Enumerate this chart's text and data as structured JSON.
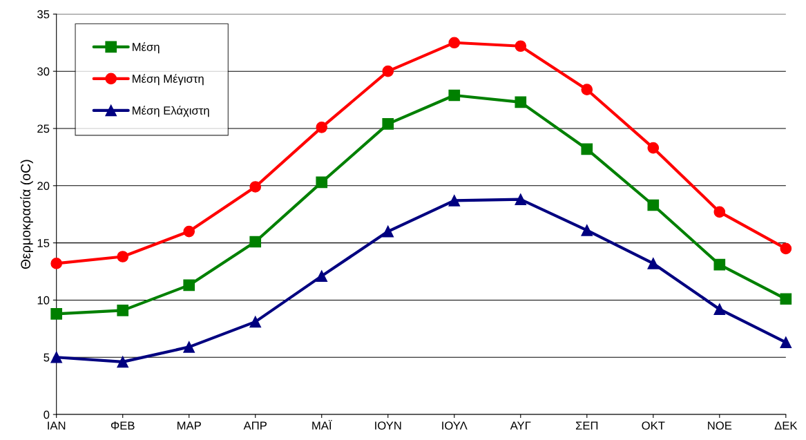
{
  "chart_data": {
    "type": "line",
    "ylabel": "Θερμοκρασία (oC)",
    "categories": [
      "ΙΑΝ",
      "ΦΕΒ",
      "ΜΑΡ",
      "ΑΠΡ",
      "ΜΑΪ",
      "ΙΟΥΝ",
      "ΙΟΥΛ",
      "ΑΥΓ",
      "ΣΕΠ",
      "ΟΚΤ",
      "ΝΟΕ",
      "ΔΕΚ"
    ],
    "series": [
      {
        "name": "Μέση",
        "color": "#008000",
        "marker": "square",
        "values": [
          8.8,
          9.1,
          11.3,
          15.1,
          20.3,
          25.4,
          27.9,
          27.3,
          23.2,
          18.3,
          13.1,
          10.1
        ]
      },
      {
        "name": "Μέση Μέγιστη",
        "color": "#ff0000",
        "marker": "circle",
        "values": [
          13.2,
          13.8,
          16.0,
          19.9,
          25.1,
          30.0,
          32.5,
          32.2,
          28.4,
          23.3,
          17.7,
          14.5
        ]
      },
      {
        "name": "Μέση Ελάχιστη",
        "color": "#000080",
        "marker": "triangle",
        "values": [
          5.0,
          4.6,
          5.9,
          8.1,
          12.1,
          16.0,
          18.7,
          18.8,
          16.1,
          13.2,
          9.2,
          6.3
        ]
      }
    ],
    "ylim": [
      0,
      35
    ],
    "yticks": [
      0,
      5,
      10,
      15,
      20,
      25,
      30,
      35
    ],
    "grid": "y",
    "legend": "top left",
    "line_style": "solid"
  }
}
